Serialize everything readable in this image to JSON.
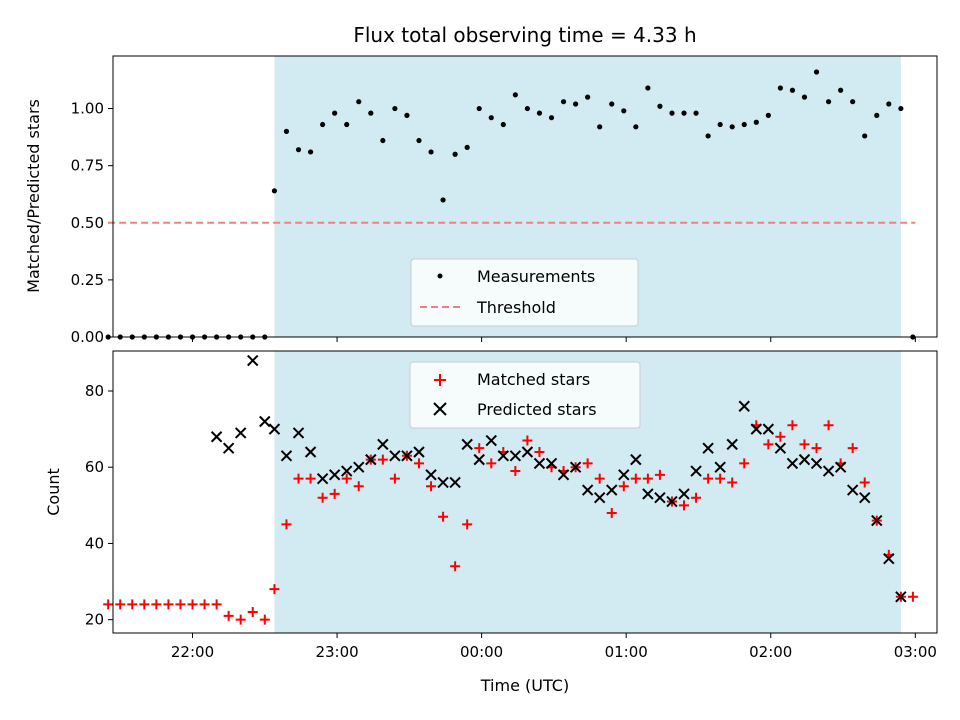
{
  "chart_data": [
    {
      "type": "scatter",
      "title": "Flux total observing time = 4.33 h",
      "xlabel": "",
      "ylabel": "Matched/Predicted stars",
      "xlim": [
        "21:27",
        "03:09"
      ],
      "ylim": [
        0,
        1.23
      ],
      "yticks": [
        "0.00",
        "0.25",
        "0.50",
        "0.75",
        "1.00"
      ],
      "legend_position": "bottom-center",
      "shaded_interval": {
        "start": "22:34",
        "end": "02:54",
        "color": "#add8e6"
      },
      "series": [
        {
          "name": "Measurements",
          "marker": "dot",
          "color": "#000000",
          "x": [
            "21:25",
            "21:30",
            "21:35",
            "21:40",
            "21:45",
            "21:50",
            "21:55",
            "22:00",
            "22:05",
            "22:10",
            "22:15",
            "22:20",
            "22:25",
            "22:30",
            "22:34",
            "22:39",
            "22:44",
            "22:49",
            "22:54",
            "22:59",
            "23:04",
            "23:09",
            "23:14",
            "23:19",
            "23:24",
            "23:29",
            "23:34",
            "23:39",
            "23:44",
            "23:49",
            "23:54",
            "23:59",
            "00:04",
            "00:09",
            "00:14",
            "00:19",
            "00:24",
            "00:29",
            "00:34",
            "00:39",
            "00:44",
            "00:49",
            "00:54",
            "00:59",
            "01:04",
            "01:09",
            "01:14",
            "01:19",
            "01:24",
            "01:29",
            "01:34",
            "01:39",
            "01:44",
            "01:49",
            "01:54",
            "01:59",
            "02:04",
            "02:09",
            "02:14",
            "02:19",
            "02:24",
            "02:29",
            "02:34",
            "02:39",
            "02:44",
            "02:49",
            "02:54",
            "02:59"
          ],
          "y": [
            0,
            0,
            0,
            0,
            0,
            0,
            0,
            0,
            0,
            0,
            0,
            0,
            0,
            0,
            0.64,
            0.9,
            0.82,
            0.81,
            0.93,
            0.98,
            0.93,
            1.03,
            0.98,
            0.86,
            1.0,
            0.97,
            0.86,
            0.81,
            0.6,
            0.8,
            0.83,
            1.0,
            0.96,
            0.93,
            1.06,
            1.0,
            0.98,
            0.96,
            1.03,
            1.02,
            1.05,
            0.92,
            1.02,
            0.99,
            0.92,
            1.09,
            1.01,
            0.98,
            0.98,
            0.98,
            0.88,
            0.93,
            0.92,
            0.93,
            0.94,
            0.97,
            1.09,
            1.08,
            1.05,
            1.16,
            1.03,
            1.08,
            1.03,
            0.88,
            0.97,
            1.02,
            1.0,
            0.0
          ]
        },
        {
          "name": "Threshold",
          "marker": "dashed-line",
          "color": "#f08080",
          "x": [
            "21:25",
            "03:00"
          ],
          "y": [
            0.5,
            0.5
          ]
        }
      ]
    },
    {
      "type": "scatter",
      "title": "",
      "xlabel": "Time (UTC)",
      "ylabel": "Count",
      "xlim": [
        "21:27",
        "03:09"
      ],
      "ylim": [
        16.5,
        90.5
      ],
      "xticks": [
        "22:00",
        "23:00",
        "00:00",
        "01:00",
        "02:00",
        "03:00"
      ],
      "yticks": [
        "20",
        "40",
        "60",
        "80"
      ],
      "legend_position": "top-center",
      "shaded_interval": {
        "start": "22:34",
        "end": "02:54",
        "color": "#add8e6"
      },
      "series": [
        {
          "name": "Matched stars",
          "marker": "plus",
          "color": "#ff0000",
          "x": [
            "21:25",
            "21:30",
            "21:35",
            "21:40",
            "21:45",
            "21:50",
            "21:55",
            "22:00",
            "22:05",
            "22:10",
            "22:15",
            "22:20",
            "22:25",
            "22:30",
            "22:34",
            "22:39",
            "22:44",
            "22:49",
            "22:54",
            "22:59",
            "23:04",
            "23:09",
            "23:14",
            "23:19",
            "23:24",
            "23:29",
            "23:34",
            "23:39",
            "23:44",
            "23:49",
            "23:54",
            "23:59",
            "00:04",
            "00:09",
            "00:14",
            "00:19",
            "00:24",
            "00:29",
            "00:34",
            "00:39",
            "00:44",
            "00:49",
            "00:54",
            "00:59",
            "01:04",
            "01:09",
            "01:14",
            "01:19",
            "01:24",
            "01:29",
            "01:34",
            "01:39",
            "01:44",
            "01:49",
            "01:54",
            "01:59",
            "02:04",
            "02:09",
            "02:14",
            "02:19",
            "02:24",
            "02:29",
            "02:34",
            "02:39",
            "02:44",
            "02:49",
            "02:54",
            "02:59"
          ],
          "y": [
            24,
            24,
            24,
            24,
            24,
            24,
            24,
            24,
            24,
            24,
            21,
            20,
            22,
            20,
            28,
            45,
            57,
            57,
            52,
            53,
            57,
            55,
            62,
            62,
            57,
            63,
            61,
            55,
            47,
            34,
            45,
            65,
            61,
            64,
            59,
            67,
            64,
            60,
            59,
            60,
            61,
            57,
            48,
            55,
            57,
            57,
            58,
            51,
            50,
            52,
            57,
            57,
            56,
            61,
            71,
            66,
            68,
            71,
            66,
            65,
            71,
            61,
            65,
            56,
            46,
            37,
            26,
            26
          ]
        },
        {
          "name": "Predicted stars",
          "marker": "x",
          "color": "#000000",
          "x": [
            "22:10",
            "22:15",
            "22:20",
            "22:25",
            "22:30",
            "22:34",
            "22:39",
            "22:44",
            "22:49",
            "22:54",
            "22:59",
            "23:04",
            "23:09",
            "23:14",
            "23:19",
            "23:24",
            "23:29",
            "23:34",
            "23:39",
            "23:44",
            "23:49",
            "23:54",
            "23:59",
            "00:04",
            "00:09",
            "00:14",
            "00:19",
            "00:24",
            "00:29",
            "00:34",
            "00:39",
            "00:44",
            "00:49",
            "00:54",
            "00:59",
            "01:04",
            "01:09",
            "01:14",
            "01:19",
            "01:24",
            "01:29",
            "01:34",
            "01:39",
            "01:44",
            "01:49",
            "01:54",
            "01:59",
            "02:04",
            "02:09",
            "02:14",
            "02:19",
            "02:24",
            "02:29",
            "02:34",
            "02:39",
            "02:44",
            "02:49",
            "02:54"
          ],
          "y": [
            68,
            65,
            69,
            88,
            72,
            70,
            63,
            69,
            64,
            57,
            58,
            59,
            60,
            62,
            66,
            63,
            63,
            64,
            58,
            56,
            56,
            66,
            62,
            67,
            63,
            63,
            64,
            61,
            61,
            58,
            60,
            54,
            52,
            54,
            58,
            62,
            53,
            52,
            51,
            53,
            59,
            65,
            60,
            66,
            76,
            70,
            70,
            65,
            61,
            62,
            61,
            59,
            60,
            54,
            52,
            46,
            36,
            26
          ]
        }
      ]
    }
  ]
}
